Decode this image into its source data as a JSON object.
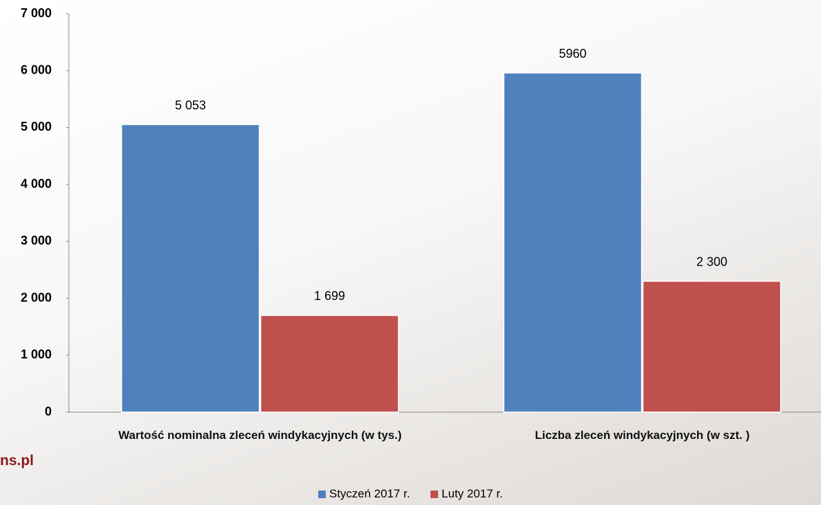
{
  "chart_data": {
    "type": "bar",
    "categories": [
      "Wartość nominalna zleceń windykacyjnych (w tys.)",
      "Liczba zleceń windykacyjnych (w szt. )"
    ],
    "series": [
      {
        "name": "Styczeń 2017 r.",
        "color": "#4f81bd",
        "values": [
          5053,
          5960
        ],
        "value_labels": [
          "5 053",
          "5960"
        ]
      },
      {
        "name": "Luty 2017 r.",
        "color": "#c0504d",
        "values": [
          1699,
          2300
        ],
        "value_labels": [
          "1 699",
          "2 300"
        ]
      }
    ],
    "ylim": [
      0,
      7000
    ],
    "yticks": [
      0,
      {
        "value": 1000,
        "label": "1 000"
      },
      {
        "value": 2000,
        "label": "2 000"
      },
      {
        "value": 3000,
        "label": "3 000"
      },
      {
        "value": 4000,
        "label": "4 000"
      },
      {
        "value": 5000,
        "label": "5 000"
      },
      {
        "value": 6000,
        "label": "6 000"
      },
      {
        "value": 7000,
        "label": "7 000"
      }
    ],
    "grid": false,
    "legend": "bottom",
    "watermark": "ns.pl"
  }
}
